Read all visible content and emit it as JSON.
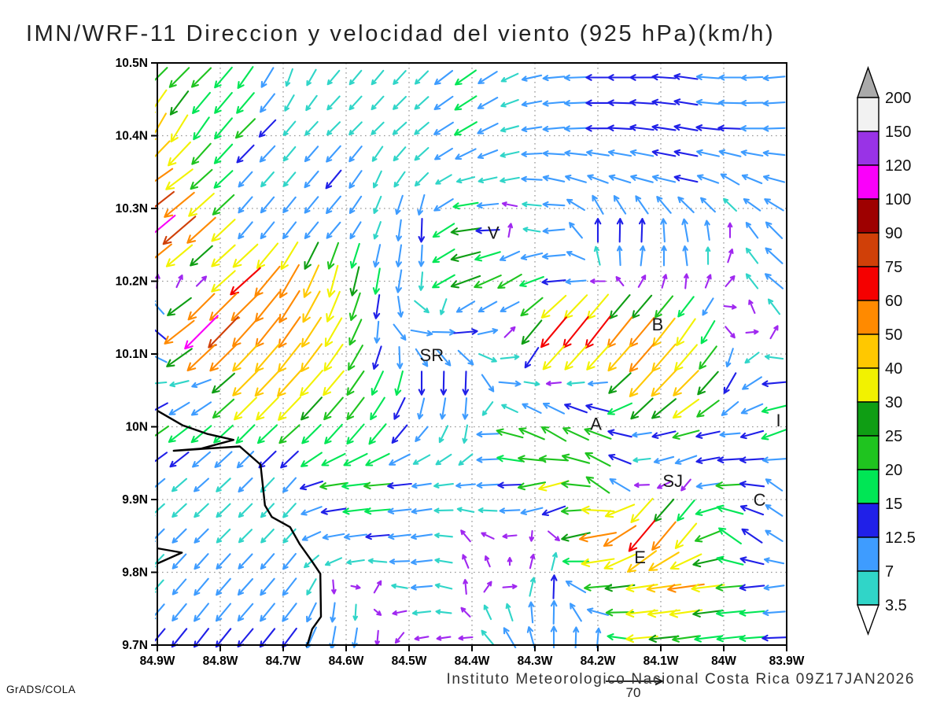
{
  "title": "IMN/WRF-11 Direccion y velocidad del viento (925 hPa)(km/h)",
  "watermark": "GrADS/COLA",
  "caption": "Instituto Meteorologico Nacional Costa Rica 09Z17JAN2026",
  "reference_arrow": {
    "label": "70"
  },
  "axes": {
    "x_tick_labels": [
      "84.9W",
      "84.8W",
      "84.7W",
      "84.6W",
      "84.5W",
      "84.4W",
      "84.3W",
      "84.2W",
      "84.1W",
      "84W",
      "83.9W"
    ],
    "x_tick_lons": [
      84.9,
      84.8,
      84.7,
      84.6,
      84.5,
      84.4,
      84.3,
      84.2,
      84.1,
      84.0,
      83.9
    ],
    "y_tick_labels": [
      "10.5N",
      "10.4N",
      "10.3N",
      "10.2N",
      "10.1N",
      "10N",
      "9.9N",
      "9.8N",
      "9.7N"
    ],
    "y_tick_lats": [
      10.5,
      10.4,
      10.3,
      10.2,
      10.1,
      10.0,
      9.9,
      9.8,
      9.7
    ]
  },
  "city_labels": [
    {
      "text": "V",
      "lon": 84.366,
      "lat": 10.266
    },
    {
      "text": "SR",
      "lon": 84.464,
      "lat": 10.098
    },
    {
      "text": "B",
      "lon": 84.105,
      "lat": 10.14
    },
    {
      "text": "A",
      "lon": 84.203,
      "lat": 10.003
    },
    {
      "text": "SJ",
      "lon": 84.081,
      "lat": 9.925
    },
    {
      "text": "C",
      "lon": 83.943,
      "lat": 9.899
    },
    {
      "text": "E",
      "lon": 84.133,
      "lat": 9.82
    },
    {
      "text": "I",
      "lon": 83.913,
      "lat": 10.008
    }
  ],
  "colorbar": {
    "labels": [
      "200",
      "150",
      "120",
      "100",
      "90",
      "75",
      "60",
      "50",
      "40",
      "30",
      "25",
      "20",
      "15",
      "12.5",
      "7",
      "3.5"
    ],
    "box_colors_top_to_bottom": [
      "#F2F2F2",
      "#9933E6",
      "#FA00FA",
      "#9E0000",
      "#D04008",
      "#F50000",
      "#FF8A00",
      "#FFC800",
      "#F2F200",
      "#0F9E14",
      "#1FC41F",
      "#00E655",
      "#2020E8",
      "#3E9CFF",
      "#30D5C8"
    ],
    "top_triangle_color": "#AAAAAA",
    "bottom_triangle_color": "#FFFFFF"
  },
  "coastline": {
    "color": "#000000",
    "polylines_lon_lat": [
      [
        [
          84.9,
          10.022
        ],
        [
          84.86,
          10.002
        ],
        [
          84.82,
          9.99
        ],
        [
          84.779,
          9.982
        ],
        [
          84.83,
          9.97
        ],
        [
          84.874,
          9.967
        ],
        [
          84.769,
          9.973
        ],
        [
          84.736,
          9.948
        ],
        [
          84.729,
          9.892
        ],
        [
          84.718,
          9.876
        ],
        [
          84.689,
          9.862
        ],
        [
          84.674,
          9.839
        ],
        [
          84.655,
          9.816
        ],
        [
          84.641,
          9.798
        ],
        [
          84.64,
          9.739
        ],
        [
          84.654,
          9.722
        ],
        [
          84.661,
          9.702
        ],
        [
          84.664,
          9.698
        ]
      ],
      [
        [
          84.9,
          9.833
        ],
        [
          84.861,
          9.827
        ],
        [
          84.9,
          9.812
        ]
      ]
    ]
  },
  "chart_data": {
    "type": "vector_field",
    "title": "IMN/WRF-11 Direccion y velocidad del viento (925 hPa)(km/h)",
    "units": "km/h",
    "level": "925 hPa",
    "lon_range_degW": [
      84.9,
      83.9
    ],
    "lat_range_degN": [
      9.7,
      10.5
    ],
    "grid_on": true,
    "legend_position": "right colorbar",
    "speed_levels": [
      3.5,
      7,
      12.5,
      15,
      20,
      25,
      30,
      40,
      50,
      60,
      75,
      90,
      100,
      120,
      150
    ],
    "speed_colors_low_to_high": [
      "#A028F0",
      "#30D5C8",
      "#3E9CFF",
      "#2020E8",
      "#00E655",
      "#1FC41F",
      "#0F9E14",
      "#F2F200",
      "#FFC800",
      "#FF8A00",
      "#F50000",
      "#D04008",
      "#9E0000",
      "#FA00FA",
      "#9933E6",
      "#F2F2F2"
    ],
    "direction_convention": "math degrees toward: 0=E, 90=N, 180=W, 270=S",
    "grid_lons_degW": [
      84.9,
      84.83,
      84.76,
      84.69,
      84.62,
      84.55,
      84.48,
      84.41,
      84.34,
      84.27,
      84.2,
      84.13,
      84.06,
      83.99,
      83.92
    ],
    "grid_lats_degN": [
      10.48,
      10.41,
      10.34,
      10.27,
      10.2,
      10.13,
      10.06,
      9.99,
      9.92,
      9.85,
      9.78,
      9.71
    ],
    "vectors_dir_speed": [
      [
        [
          225,
          22
        ],
        [
          225,
          20
        ],
        [
          235,
          18
        ],
        [
          250,
          6
        ],
        [
          230,
          6
        ],
        [
          230,
          6
        ],
        [
          225,
          6
        ],
        [
          215,
          16
        ],
        [
          205,
          6
        ],
        [
          185,
          10
        ],
        [
          180,
          13
        ],
        [
          180,
          13
        ],
        [
          172,
          13
        ],
        [
          180,
          10
        ],
        [
          185,
          10
        ]
      ],
      [
        [
          240,
          42
        ],
        [
          235,
          20
        ],
        [
          225,
          20
        ],
        [
          230,
          6
        ],
        [
          225,
          6
        ],
        [
          225,
          5
        ],
        [
          220,
          6
        ],
        [
          210,
          17
        ],
        [
          195,
          6
        ],
        [
          185,
          10
        ],
        [
          180,
          13
        ],
        [
          173,
          13
        ],
        [
          170,
          13
        ],
        [
          178,
          13
        ],
        [
          182,
          10
        ]
      ],
      [
        [
          215,
          52
        ],
        [
          222,
          24
        ],
        [
          228,
          8
        ],
        [
          230,
          6
        ],
        [
          230,
          13
        ],
        [
          245,
          6
        ],
        [
          225,
          6
        ],
        [
          195,
          6
        ],
        [
          190,
          7
        ],
        [
          168,
          10
        ],
        [
          160,
          10
        ],
        [
          165,
          12
        ],
        [
          168,
          13
        ],
        [
          150,
          9
        ],
        [
          165,
          10
        ]
      ],
      [
        [
          220,
          102
        ],
        [
          222,
          55
        ],
        [
          230,
          10
        ],
        [
          232,
          9
        ],
        [
          230,
          9
        ],
        [
          250,
          6
        ],
        [
          268,
          13
        ],
        [
          188,
          26
        ],
        [
          80,
          2.5
        ],
        [
          185,
          10
        ],
        [
          90,
          13
        ],
        [
          88,
          13
        ],
        [
          100,
          12
        ],
        [
          90,
          3
        ],
        [
          135,
          12
        ]
      ],
      [
        [
          85,
          2.5
        ],
        [
          45,
          2.5
        ],
        [
          222,
          65
        ],
        [
          240,
          55
        ],
        [
          255,
          35
        ],
        [
          260,
          18
        ],
        [
          265,
          6
        ],
        [
          200,
          30
        ],
        [
          210,
          20
        ],
        [
          185,
          13
        ],
        [
          180,
          3
        ],
        [
          60,
          2.5
        ],
        [
          85,
          3
        ],
        [
          50,
          2.5
        ],
        [
          140,
          12
        ]
      ],
      [
        [
          140,
          13
        ],
        [
          225,
          105
        ],
        [
          228,
          55
        ],
        [
          235,
          52
        ],
        [
          240,
          35
        ],
        [
          265,
          10
        ],
        [
          350,
          10
        ],
        [
          5,
          13
        ],
        [
          45,
          3
        ],
        [
          230,
          62
        ],
        [
          232,
          65
        ],
        [
          230,
          55
        ],
        [
          235,
          35
        ],
        [
          310,
          3
        ],
        [
          60,
          3
        ]
      ],
      [
        [
          185,
          6
        ],
        [
          200,
          8
        ],
        [
          225,
          45
        ],
        [
          228,
          45
        ],
        [
          230,
          32
        ],
        [
          245,
          18
        ],
        [
          270,
          13
        ],
        [
          268,
          13
        ],
        [
          355,
          10
        ],
        [
          185,
          3
        ],
        [
          185,
          7
        ],
        [
          228,
          48
        ],
        [
          225,
          45
        ],
        [
          240,
          13
        ],
        [
          185,
          13
        ]
      ],
      [
        [
          215,
          20
        ],
        [
          220,
          17
        ],
        [
          225,
          17
        ],
        [
          222,
          20
        ],
        [
          228,
          17
        ],
        [
          230,
          18
        ],
        [
          230,
          7
        ],
        [
          260,
          6
        ],
        [
          165,
          20
        ],
        [
          150,
          22
        ],
        [
          160,
          22
        ],
        [
          188,
          7
        ],
        [
          195,
          20
        ],
        [
          185,
          8
        ],
        [
          200,
          18
        ]
      ],
      [
        [
          220,
          7
        ],
        [
          222,
          7
        ],
        [
          225,
          7
        ],
        [
          228,
          7
        ],
        [
          188,
          20
        ],
        [
          185,
          20
        ],
        [
          188,
          7
        ],
        [
          185,
          7
        ],
        [
          182,
          13
        ],
        [
          195,
          30
        ],
        [
          145,
          22
        ],
        [
          182,
          3
        ],
        [
          230,
          3
        ],
        [
          183,
          22
        ],
        [
          145,
          8
        ]
      ],
      [
        [
          225,
          7
        ],
        [
          225,
          7
        ],
        [
          225,
          6
        ],
        [
          228,
          6
        ],
        [
          190,
          10
        ],
        [
          185,
          13
        ],
        [
          188,
          9
        ],
        [
          130,
          3
        ],
        [
          185,
          2.5
        ],
        [
          320,
          3
        ],
        [
          190,
          52
        ],
        [
          230,
          65
        ],
        [
          230,
          35
        ],
        [
          145,
          20
        ],
        [
          148,
          8
        ]
      ],
      [
        [
          228,
          6
        ],
        [
          230,
          10
        ],
        [
          228,
          10
        ],
        [
          232,
          10
        ],
        [
          275,
          2.5
        ],
        [
          60,
          2.5
        ],
        [
          185,
          9
        ],
        [
          95,
          3
        ],
        [
          5,
          2.5
        ],
        [
          88,
          13
        ],
        [
          185,
          20
        ],
        [
          188,
          32
        ],
        [
          188,
          50
        ],
        [
          185,
          22
        ],
        [
          188,
          8
        ]
      ],
      [
        [
          230,
          13
        ],
        [
          232,
          13
        ],
        [
          230,
          13
        ],
        [
          233,
          13
        ],
        [
          260,
          12
        ],
        [
          265,
          3
        ],
        [
          190,
          2.5
        ],
        [
          185,
          2.5
        ],
        [
          120,
          12
        ],
        [
          90,
          12
        ],
        [
          85,
          7
        ],
        [
          185,
          32
        ],
        [
          188,
          20
        ],
        [
          186,
          18
        ],
        [
          182,
          13
        ]
      ]
    ],
    "reference_vector": {
      "label": "70",
      "units": "km/h"
    }
  }
}
